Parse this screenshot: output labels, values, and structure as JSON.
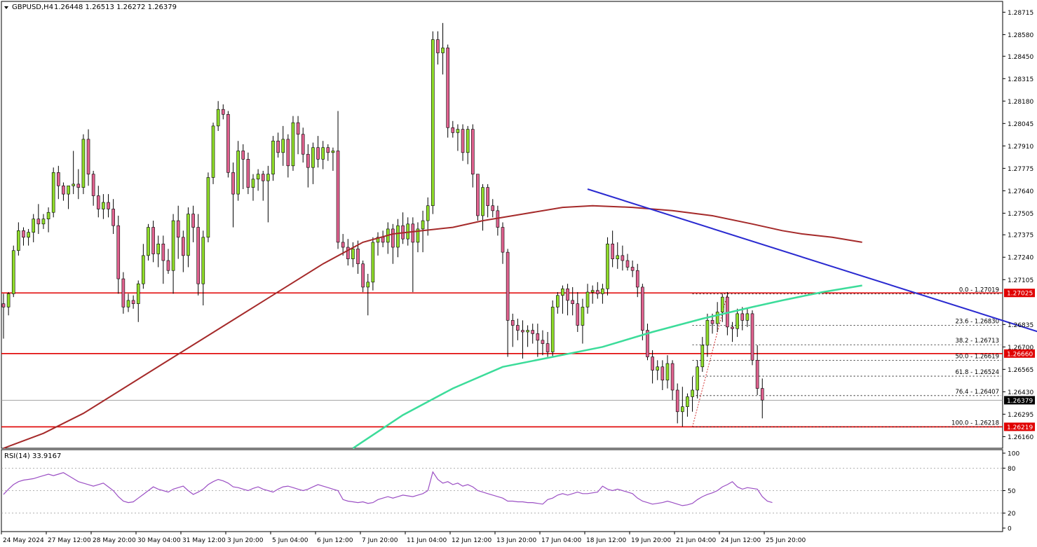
{
  "header": {
    "symbol": "GBPUSD,H4",
    "ohlc": "1.26448 1.26513 1.26272 1.26379"
  },
  "rsi_header": "RSI(14) 33.9167",
  "colors": {
    "bull": "#8fdc2a",
    "bear": "#e0628f",
    "ma_slow": "#a52a2a",
    "ma_fast": "#3cdc9a",
    "trendline": "#2a2ad0",
    "hline": "#e00000",
    "rsi": "#9b4fc4",
    "grid": "#000000"
  },
  "chart_data": {
    "type": "candlestick",
    "title": "GBPUSD,H4",
    "ylim": [
      1.2609,
      1.2878
    ],
    "price_ticks": [
      "1.28715",
      "1.28580",
      "1.28450",
      "1.28315",
      "1.28180",
      "1.28045",
      "1.27910",
      "1.27775",
      "1.27640",
      "1.27505",
      "1.27375",
      "1.27240",
      "1.27105",
      "1.26835",
      "1.26700",
      "1.26565",
      "1.26430",
      "1.26295",
      "1.26160"
    ],
    "time_labels": [
      "24 May 2024",
      "27 May 12:00",
      "28 May 20:00",
      "30 May 04:00",
      "31 May 12:00",
      "3 Jun 20:00",
      "5 Jun 04:00",
      "6 Jun 12:00",
      "7 Jun 20:00",
      "11 Jun 04:00",
      "12 Jun 12:00",
      "13 Jun 20:00",
      "17 Jun 04:00",
      "18 Jun 12:00",
      "19 Jun 20:00",
      "21 Jun 04:00",
      "24 Jun 12:00",
      "25 Jun 20:00"
    ],
    "price_boxes": [
      {
        "label": "1.27025",
        "value": 1.27025,
        "kind": "red"
      },
      {
        "label": "1.26660",
        "value": 1.2666,
        "kind": "red"
      },
      {
        "label": "1.26379",
        "value": 1.26379,
        "kind": "black"
      },
      {
        "label": "1.26219",
        "value": 1.26219,
        "kind": "red"
      }
    ],
    "horizontal_levels": [
      1.27025,
      1.2666,
      1.26219
    ],
    "fibonacci": [
      {
        "label": "0.0 - 1.27019",
        "value": 1.27019
      },
      {
        "label": "23.6 - 1.26830",
        "value": 1.2683
      },
      {
        "label": "38.2 - 1.26713",
        "value": 1.26713
      },
      {
        "label": "50.0 - 1.26619",
        "value": 1.26619
      },
      {
        "label": "61.8 - 1.26524",
        "value": 1.26524
      },
      {
        "label": "76.4 - 1.26407",
        "value": 1.26407
      },
      {
        "label": "100.0 - 1.26218",
        "value": 1.26218
      }
    ],
    "trendline": {
      "from": [
        117,
        1.2765
      ],
      "to": [
        220,
        1.2667
      ]
    },
    "candles": [
      [
        1.2696,
        1.2702,
        1.2675,
        1.2694
      ],
      [
        1.2694,
        1.2703,
        1.2689,
        1.2702
      ],
      [
        1.2702,
        1.2731,
        1.27,
        1.2728
      ],
      [
        1.2728,
        1.2745,
        1.2725,
        1.274
      ],
      [
        1.274,
        1.2742,
        1.2731,
        1.2736
      ],
      [
        1.2736,
        1.2741,
        1.2731,
        1.2739
      ],
      [
        1.2739,
        1.275,
        1.2733,
        1.2747
      ],
      [
        1.2747,
        1.2756,
        1.2738,
        1.2744
      ],
      [
        1.2744,
        1.275,
        1.2741,
        1.2747
      ],
      [
        1.2747,
        1.2754,
        1.2739,
        1.2751
      ],
      [
        1.2751,
        1.2778,
        1.2748,
        1.2775
      ],
      [
        1.2775,
        1.2779,
        1.2759,
        1.2767
      ],
      [
        1.2767,
        1.2769,
        1.2758,
        1.2762
      ],
      [
        1.2762,
        1.2767,
        1.2753,
        1.2767
      ],
      [
        1.2767,
        1.2788,
        1.2762,
        1.2768
      ],
      [
        1.2768,
        1.2777,
        1.2759,
        1.2766
      ],
      [
        1.2766,
        1.2798,
        1.2762,
        1.2795
      ],
      [
        1.2795,
        1.2801,
        1.2767,
        1.2774
      ],
      [
        1.2774,
        1.2776,
        1.2755,
        1.2761
      ],
      [
        1.2761,
        1.2767,
        1.2748,
        1.2753
      ],
      [
        1.2753,
        1.2762,
        1.2747,
        1.2757
      ],
      [
        1.2757,
        1.2762,
        1.2748,
        1.2753
      ],
      [
        1.2753,
        1.2759,
        1.2738,
        1.2743
      ],
      [
        1.2743,
        1.2749,
        1.2702,
        1.2711
      ],
      [
        1.2711,
        1.2715,
        1.269,
        1.2694
      ],
      [
        1.2694,
        1.2702,
        1.2691,
        1.2698
      ],
      [
        1.2698,
        1.2701,
        1.2693,
        1.2696
      ],
      [
        1.2696,
        1.271,
        1.2685,
        1.2708
      ],
      [
        1.2708,
        1.2732,
        1.2705,
        1.2725
      ],
      [
        1.2725,
        1.2744,
        1.2722,
        1.2742
      ],
      [
        1.2742,
        1.2746,
        1.2721,
        1.2726
      ],
      [
        1.2726,
        1.2737,
        1.2718,
        1.2732
      ],
      [
        1.2732,
        1.2737,
        1.2708,
        1.2722
      ],
      [
        1.2722,
        1.2729,
        1.2714,
        1.2716
      ],
      [
        1.2716,
        1.275,
        1.2702,
        1.2746
      ],
      [
        1.2746,
        1.2755,
        1.2723,
        1.2736
      ],
      [
        1.2736,
        1.274,
        1.2715,
        1.2725
      ],
      [
        1.2725,
        1.2754,
        1.2718,
        1.275
      ],
      [
        1.275,
        1.2755,
        1.2733,
        1.2742
      ],
      [
        1.2742,
        1.275,
        1.2701,
        1.2708
      ],
      [
        1.2708,
        1.274,
        1.2695,
        1.2736
      ],
      [
        1.2736,
        1.2775,
        1.2733,
        1.2772
      ],
      [
        1.2772,
        1.2805,
        1.2768,
        1.2803
      ],
      [
        1.2803,
        1.2818,
        1.28,
        1.2813
      ],
      [
        1.2813,
        1.2816,
        1.2807,
        1.281
      ],
      [
        1.281,
        1.2812,
        1.2772,
        1.2775
      ],
      [
        1.2775,
        1.2781,
        1.2742,
        1.2762
      ],
      [
        1.2762,
        1.2794,
        1.2758,
        1.2788
      ],
      [
        1.2788,
        1.2792,
        1.2765,
        1.2783
      ],
      [
        1.2783,
        1.2787,
        1.2762,
        1.2766
      ],
      [
        1.2766,
        1.2774,
        1.2758,
        1.2771
      ],
      [
        1.2771,
        1.2777,
        1.2764,
        1.2774
      ],
      [
        1.2774,
        1.2776,
        1.2758,
        1.277
      ],
      [
        1.277,
        1.2779,
        1.2745,
        1.2774
      ],
      [
        1.2774,
        1.2797,
        1.277,
        1.2794
      ],
      [
        1.2794,
        1.2799,
        1.2784,
        1.2787
      ],
      [
        1.2787,
        1.2803,
        1.2779,
        1.2795
      ],
      [
        1.2795,
        1.2798,
        1.2772,
        1.2779
      ],
      [
        1.2779,
        1.2809,
        1.2776,
        1.2805
      ],
      [
        1.2805,
        1.2809,
        1.2786,
        1.2798
      ],
      [
        1.2798,
        1.2802,
        1.2781,
        1.2786
      ],
      [
        1.2786,
        1.2792,
        1.2766,
        1.2778
      ],
      [
        1.2778,
        1.2793,
        1.2768,
        1.279
      ],
      [
        1.279,
        1.2797,
        1.2778,
        1.2783
      ],
      [
        1.2783,
        1.2794,
        1.2777,
        1.279
      ],
      [
        1.279,
        1.2792,
        1.2782,
        1.2787
      ],
      [
        1.2787,
        1.279,
        1.2776,
        1.2788
      ],
      [
        1.2788,
        1.2812,
        1.2729,
        1.2733
      ],
      [
        1.2733,
        1.2738,
        1.2725,
        1.273
      ],
      [
        1.273,
        1.2735,
        1.2719,
        1.2723
      ],
      [
        1.2723,
        1.2733,
        1.2718,
        1.2729
      ],
      [
        1.2729,
        1.2734,
        1.2714,
        1.272
      ],
      [
        1.272,
        1.2722,
        1.2703,
        1.2706
      ],
      [
        1.2706,
        1.2714,
        1.2689,
        1.2709
      ],
      [
        1.2709,
        1.2736,
        1.2704,
        1.2733
      ],
      [
        1.2733,
        1.2739,
        1.2725,
        1.2736
      ],
      [
        1.2736,
        1.274,
        1.273,
        1.2733
      ],
      [
        1.2733,
        1.2745,
        1.2726,
        1.2741
      ],
      [
        1.2741,
        1.2744,
        1.272,
        1.273
      ],
      [
        1.273,
        1.2747,
        1.2724,
        1.2743
      ],
      [
        1.2743,
        1.2751,
        1.2732,
        1.2735
      ],
      [
        1.2735,
        1.2748,
        1.2731,
        1.2744
      ],
      [
        1.2744,
        1.2748,
        1.2703,
        1.2733
      ],
      [
        1.2733,
        1.2745,
        1.2727,
        1.2741
      ],
      [
        1.2741,
        1.2752,
        1.2727,
        1.2746
      ],
      [
        1.2746,
        1.276,
        1.2737,
        1.2755
      ],
      [
        1.2755,
        1.286,
        1.275,
        1.2855
      ],
      [
        1.2855,
        1.286,
        1.284,
        1.2847
      ],
      [
        1.2847,
        1.2865,
        1.2834,
        1.285
      ],
      [
        1.285,
        1.2852,
        1.2796,
        1.2802
      ],
      [
        1.2802,
        1.2806,
        1.2796,
        1.2799
      ],
      [
        1.2799,
        1.2804,
        1.2788,
        1.2801
      ],
      [
        1.2801,
        1.2804,
        1.2782,
        1.2787
      ],
      [
        1.2787,
        1.2803,
        1.278,
        1.2801
      ],
      [
        1.2801,
        1.2804,
        1.2766,
        1.2774
      ],
      [
        1.2774,
        1.2773,
        1.2746,
        1.2749
      ],
      [
        1.2749,
        1.2768,
        1.274,
        1.2766
      ],
      [
        1.2766,
        1.2768,
        1.2748,
        1.2755
      ],
      [
        1.2755,
        1.2759,
        1.2748,
        1.2752
      ],
      [
        1.2752,
        1.2755,
        1.2737,
        1.2742
      ],
      [
        1.2742,
        1.2745,
        1.272,
        1.2727
      ],
      [
        1.2727,
        1.2729,
        1.2664,
        1.2686
      ],
      [
        1.2686,
        1.269,
        1.267,
        1.2683
      ],
      [
        1.2683,
        1.2687,
        1.2674,
        1.268
      ],
      [
        1.268,
        1.2686,
        1.2663,
        1.2679
      ],
      [
        1.2679,
        1.2683,
        1.267,
        1.268
      ],
      [
        1.268,
        1.2684,
        1.2672,
        1.2678
      ],
      [
        1.2678,
        1.2684,
        1.2664,
        1.2674
      ],
      [
        1.2674,
        1.268,
        1.2665,
        1.2672
      ],
      [
        1.2672,
        1.2679,
        1.2664,
        1.2667
      ],
      [
        1.2667,
        1.2698,
        1.2664,
        1.2694
      ],
      [
        1.2694,
        1.2703,
        1.269,
        1.2701
      ],
      [
        1.2701,
        1.2707,
        1.269,
        1.2705
      ],
      [
        1.2705,
        1.2708,
        1.2689,
        1.2698
      ],
      [
        1.2698,
        1.2706,
        1.2689,
        1.2696
      ],
      [
        1.2696,
        1.2703,
        1.2679,
        1.2683
      ],
      [
        1.2683,
        1.2699,
        1.2672,
        1.2694
      ],
      [
        1.2694,
        1.2708,
        1.269,
        1.2703
      ],
      [
        1.2703,
        1.2707,
        1.2696,
        1.2704
      ],
      [
        1.2704,
        1.2709,
        1.2699,
        1.2702
      ],
      [
        1.2702,
        1.2708,
        1.2696,
        1.2705
      ],
      [
        1.2705,
        1.2736,
        1.2701,
        1.2732
      ],
      [
        1.2732,
        1.274,
        1.2718,
        1.2723
      ],
      [
        1.2723,
        1.2733,
        1.2717,
        1.2725
      ],
      [
        1.2725,
        1.2731,
        1.2716,
        1.2722
      ],
      [
        1.2722,
        1.2726,
        1.2716,
        1.2718
      ],
      [
        1.2718,
        1.2722,
        1.2712,
        1.2716
      ],
      [
        1.2716,
        1.272,
        1.27,
        1.2706
      ],
      [
        1.2706,
        1.2708,
        1.2674,
        1.268
      ],
      [
        1.268,
        1.2684,
        1.2662,
        1.2664
      ],
      [
        1.2664,
        1.2668,
        1.2648,
        1.2656
      ],
      [
        1.2656,
        1.2662,
        1.265,
        1.2658
      ],
      [
        1.2658,
        1.2662,
        1.2644,
        1.265
      ],
      [
        1.265,
        1.2665,
        1.2645,
        1.266
      ],
      [
        1.266,
        1.2662,
        1.2638,
        1.2644
      ],
      [
        1.2644,
        1.2648,
        1.2624,
        1.2631
      ],
      [
        1.2631,
        1.2646,
        1.2622,
        1.2634
      ],
      [
        1.2634,
        1.2642,
        1.2628,
        1.264
      ],
      [
        1.264,
        1.2652,
        1.2631,
        1.2644
      ],
      [
        1.2644,
        1.2662,
        1.2639,
        1.2658
      ],
      [
        1.2658,
        1.2676,
        1.2655,
        1.2671
      ],
      [
        1.2671,
        1.269,
        1.2664,
        1.2686
      ],
      [
        1.2686,
        1.269,
        1.2678,
        1.2684
      ],
      [
        1.2684,
        1.2697,
        1.2679,
        1.2691
      ],
      [
        1.2691,
        1.2702,
        1.2685,
        1.27
      ],
      [
        1.27,
        1.2703,
        1.2677,
        1.2682
      ],
      [
        1.2682,
        1.2685,
        1.2673,
        1.2681
      ],
      [
        1.2681,
        1.2693,
        1.2676,
        1.269
      ],
      [
        1.269,
        1.2694,
        1.268,
        1.2686
      ],
      [
        1.2686,
        1.2693,
        1.2682,
        1.269
      ],
      [
        1.269,
        1.2692,
        1.2659,
        1.2662
      ],
      [
        1.2662,
        1.2671,
        1.2641,
        1.2645
      ],
      [
        1.2645,
        1.2651,
        1.2627,
        1.2638
      ]
    ],
    "ma_slow": [
      [
        0,
        1.2609
      ],
      [
        8,
        1.2618
      ],
      [
        16,
        1.263
      ],
      [
        24,
        1.2645
      ],
      [
        32,
        1.266
      ],
      [
        40,
        1.2675
      ],
      [
        48,
        1.269
      ],
      [
        56,
        1.2705
      ],
      [
        64,
        1.272
      ],
      [
        72,
        1.2733
      ],
      [
        78,
        1.2738
      ],
      [
        84,
        1.274
      ],
      [
        90,
        1.2742
      ],
      [
        96,
        1.2746
      ],
      [
        104,
        1.275
      ],
      [
        112,
        1.2754
      ],
      [
        118,
        1.2755
      ],
      [
        126,
        1.2754
      ],
      [
        134,
        1.2752
      ],
      [
        142,
        1.2749
      ],
      [
        150,
        1.2744
      ],
      [
        156,
        1.274
      ],
      [
        160,
        1.2738
      ],
      [
        166,
        1.2736
      ],
      [
        172,
        1.2733
      ]
    ],
    "ma_fast": [
      [
        70,
        1.2609
      ],
      [
        80,
        1.2629
      ],
      [
        90,
        1.2645
      ],
      [
        100,
        1.2658
      ],
      [
        110,
        1.2664
      ],
      [
        120,
        1.267
      ],
      [
        130,
        1.2679
      ],
      [
        140,
        1.2687
      ],
      [
        150,
        1.2694
      ],
      [
        156,
        1.2698
      ],
      [
        164,
        1.2703
      ],
      [
        172,
        1.2707
      ]
    ],
    "rsi": {
      "ylim": [
        0,
        100
      ],
      "ticks": [
        100,
        80,
        50,
        20,
        0
      ],
      "values": [
        45,
        52,
        58,
        62,
        64,
        65,
        66,
        68,
        70,
        72,
        70,
        72,
        74,
        70,
        66,
        62,
        60,
        58,
        56,
        58,
        60,
        55,
        50,
        42,
        36,
        34,
        35,
        40,
        45,
        50,
        55,
        52,
        50,
        48,
        52,
        54,
        56,
        50,
        45,
        48,
        52,
        58,
        62,
        65,
        63,
        60,
        55,
        54,
        52,
        50,
        53,
        55,
        52,
        50,
        48,
        52,
        55,
        56,
        54,
        52,
        50,
        52,
        55,
        58,
        56,
        54,
        52,
        50,
        38,
        36,
        35,
        34,
        35,
        33,
        34,
        38,
        40,
        42,
        40,
        42,
        44,
        43,
        42,
        44,
        46,
        50,
        75,
        65,
        60,
        62,
        58,
        60,
        56,
        58,
        55,
        50,
        48,
        46,
        44,
        42,
        40,
        36,
        36,
        35,
        35,
        34,
        34,
        33,
        32,
        38,
        40,
        44,
        46,
        44,
        46,
        48,
        46,
        46,
        47,
        48,
        56,
        52,
        50,
        52,
        50,
        48,
        46,
        40,
        36,
        34,
        32,
        33,
        34,
        36,
        34,
        32,
        30,
        31,
        33,
        38,
        42,
        45,
        47,
        50,
        55,
        58,
        62,
        55,
        52,
        54,
        53,
        52,
        42,
        36,
        34
      ]
    }
  }
}
